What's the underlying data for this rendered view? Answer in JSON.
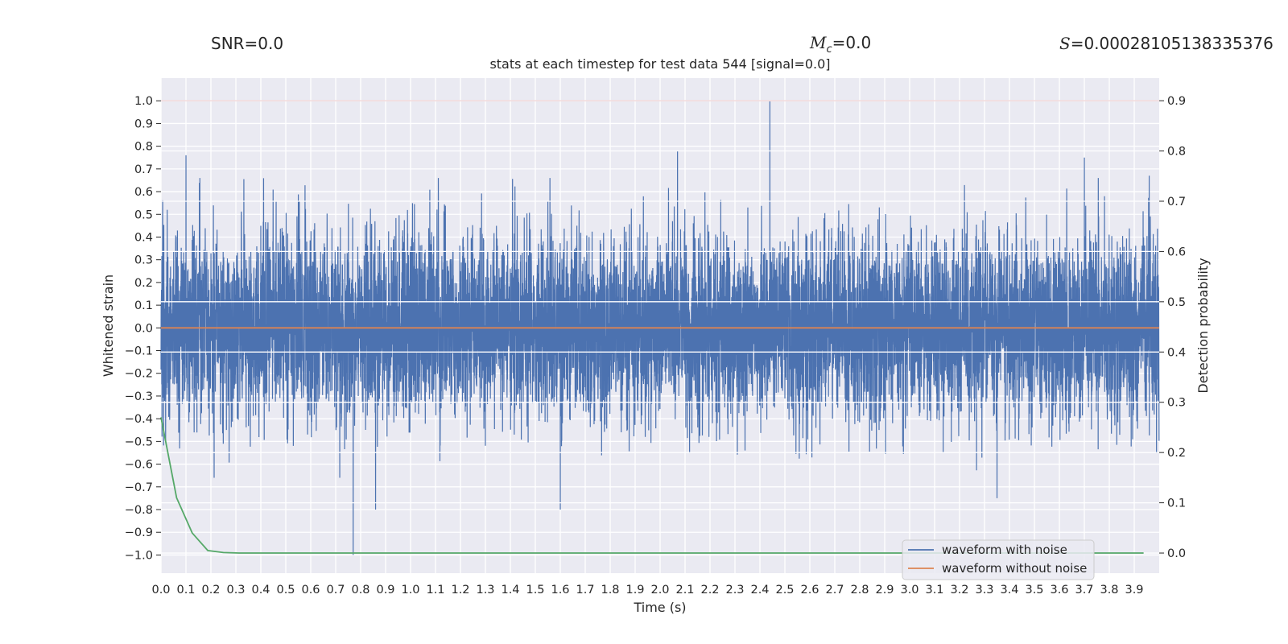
{
  "header": {
    "snr_text": "SNR=0.0",
    "mc_symbol": "M",
    "mc_subscript": "c",
    "mc_value_text": "=0.0",
    "s_symbol": "S",
    "s_value_text": "=0.00028105138335376"
  },
  "colors": {
    "background": "#EAEAF2",
    "grid": "#FFFFFF",
    "noisy": "#4C72B0",
    "clean": "#DD8452",
    "probability": "#55A868",
    "threshold": "#C44E52",
    "text": "#262626"
  },
  "chart_data": {
    "type": "line",
    "title": "stats at each timestep for test data 544 [signal=0.0]",
    "xlabel": "Time (s)",
    "ylabel": "Whitened strain",
    "y2label": "Detection probability",
    "xlim": [
      0.0,
      4.0
    ],
    "ylim": [
      -1.08,
      1.1
    ],
    "y2lim": [
      -0.04,
      0.945
    ],
    "xticks": [
      0.0,
      0.1,
      0.2,
      0.3,
      0.4,
      0.5,
      0.6,
      0.7,
      0.8,
      0.9,
      1.0,
      1.1,
      1.2,
      1.3,
      1.4,
      1.5,
      1.6,
      1.7,
      1.8,
      1.9,
      2.0,
      2.1,
      2.2,
      2.3,
      2.4,
      2.5,
      2.6,
      2.7,
      2.8,
      2.9,
      3.0,
      3.1,
      3.2,
      3.3,
      3.4,
      3.5,
      3.6,
      3.7,
      3.8,
      3.9
    ],
    "yticks": [
      1.0,
      0.9,
      0.8,
      0.7,
      0.6,
      0.5,
      0.4,
      0.3,
      0.2,
      0.1,
      0.0,
      -0.1,
      -0.2,
      -0.3,
      -0.4,
      -0.5,
      -0.6,
      -0.7,
      -0.8,
      -0.9,
      -1.0
    ],
    "y2ticks": [
      0.9,
      0.8,
      0.7,
      0.6,
      0.5,
      0.4,
      0.3,
      0.2,
      0.1,
      0.0
    ],
    "threshold": 0.9,
    "sample_rate": 2048,
    "noise_profile": {
      "seed": 544,
      "scale": 0.2,
      "peaks": [
        [
          0.025,
          0.52
        ],
        [
          0.1,
          0.76
        ],
        [
          0.77,
          -1.0
        ],
        [
          0.86,
          -0.8
        ],
        [
          1.6,
          -0.8
        ],
        [
          2.07,
          0.78
        ],
        [
          2.44,
          1.0
        ],
        [
          3.35,
          -0.75
        ],
        [
          3.7,
          0.75
        ],
        [
          3.96,
          0.67
        ]
      ]
    },
    "series": [
      {
        "name": "waveform with noise",
        "color": "#4C72B0",
        "axis": "left",
        "kind": "noise"
      },
      {
        "name": "waveform without noise",
        "color": "#DD8452",
        "axis": "left",
        "x": [
          0.0,
          4.0
        ],
        "y": [
          0.0,
          0.0
        ]
      },
      {
        "name": "detection probability",
        "color": "#55A868",
        "axis": "right",
        "x": [
          0.0,
          0.0625,
          0.125,
          0.1875,
          0.25,
          0.3125,
          0.4,
          1.0,
          2.0,
          3.0,
          3.9375
        ],
        "y": [
          0.27,
          0.11,
          0.04,
          0.005,
          0.001,
          0.0,
          0.0,
          0.0,
          0.0,
          0.0,
          0.0
        ]
      }
    ],
    "legend": {
      "position": "lower-right",
      "entries": [
        "waveform with noise",
        "waveform without noise"
      ]
    }
  }
}
